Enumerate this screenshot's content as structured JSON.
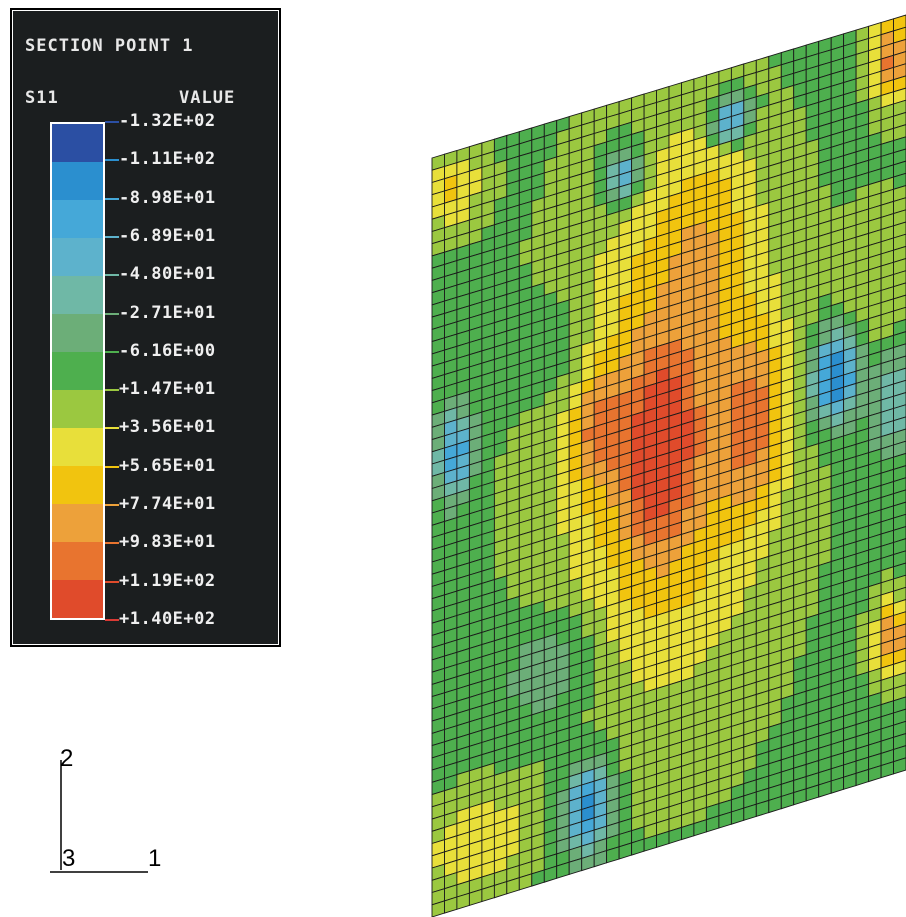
{
  "legend": {
    "title": "SECTION POINT 1",
    "variable": "S11",
    "value_header": "VALUE",
    "entries": [
      {
        "label": "-1.32E+02",
        "color": "#2b4fa3"
      },
      {
        "label": "-1.11E+02",
        "color": "#2b8fcf"
      },
      {
        "label": "-8.98E+01",
        "color": "#45a8d8"
      },
      {
        "label": "-6.89E+01",
        "color": "#5db2cc"
      },
      {
        "label": "-4.80E+01",
        "color": "#6fb8a6"
      },
      {
        "label": "-2.71E+01",
        "color": "#6cae78"
      },
      {
        "label": "-6.16E+00",
        "color": "#4eaf4e"
      },
      {
        "label": "+1.47E+01",
        "color": "#9bc840"
      },
      {
        "label": "+3.56E+01",
        "color": "#e8df3a"
      },
      {
        "label": "+5.65E+01",
        "color": "#f1c40f"
      },
      {
        "label": "+7.74E+01",
        "color": "#eda13a"
      },
      {
        "label": "+9.83E+01",
        "color": "#e8742f"
      },
      {
        "label": "+1.19E+02",
        "color": "#e04b2b"
      },
      {
        "label": "+1.40E+02",
        "color": "#d93a34"
      }
    ]
  },
  "triad": {
    "axis_2": "2",
    "axis_3": "3",
    "axis_1": "1"
  },
  "plate": {
    "description_icon": "fe-mesh-plate"
  }
}
